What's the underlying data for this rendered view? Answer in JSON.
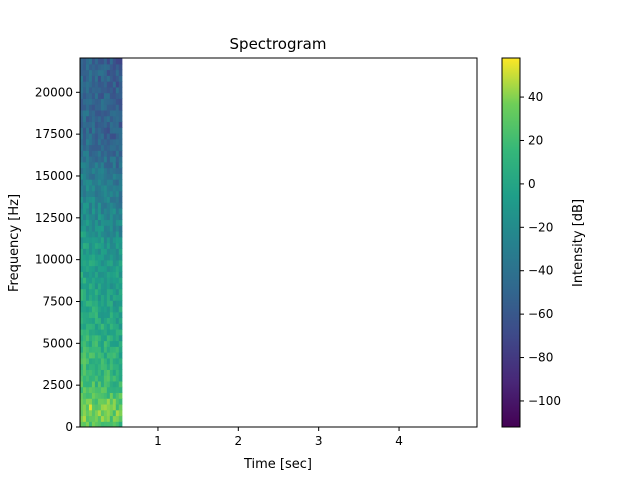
{
  "chart_data": {
    "type": "heatmap",
    "title": "Spectrogram",
    "xlabel": "Time [sec]",
    "ylabel": "Frequency [Hz]",
    "xlim": [
      0.03,
      4.97
    ],
    "ylim": [
      0,
      22050
    ],
    "xticks": [
      1,
      2,
      3,
      4
    ],
    "yticks": [
      0,
      2500,
      5000,
      7500,
      10000,
      12500,
      15000,
      17500,
      20000
    ],
    "data_extent_x": [
      0.03,
      0.55
    ],
    "colorscale": "viridis",
    "colorbar": {
      "label": "Intensity [dB]",
      "range": [
        -112,
        58
      ],
      "ticks": [
        -100,
        -80,
        -60,
        -40,
        -20,
        0,
        20,
        40
      ]
    },
    "intensity_profile": {
      "freq_hz": [
        0,
        1000,
        2500,
        5000,
        7500,
        10000,
        12500,
        15000,
        17500,
        20000,
        22050
      ],
      "level_db": [
        30,
        45,
        25,
        15,
        5,
        0,
        -15,
        -30,
        -45,
        -45,
        -50
      ]
    },
    "grid": false,
    "legend": "none"
  }
}
